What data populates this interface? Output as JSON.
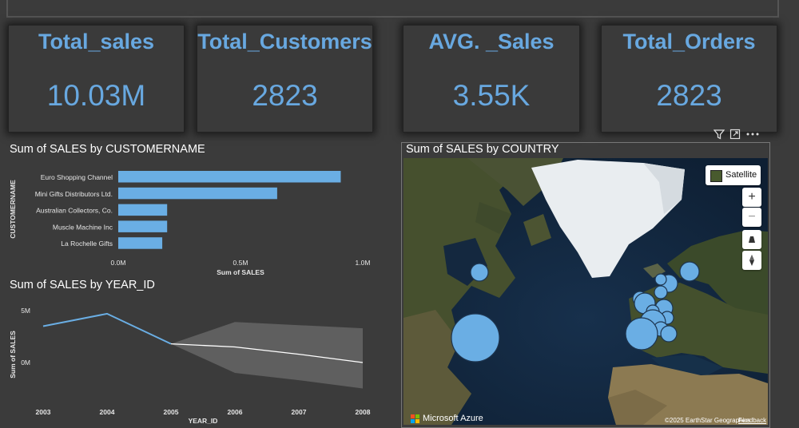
{
  "kpis": [
    {
      "title": "Total_sales",
      "value": "10.03M"
    },
    {
      "title": "Total_Customers",
      "value": "2823"
    },
    {
      "title": "AVG. _Sales",
      "value": "3.55K"
    },
    {
      "title": "Total_Orders",
      "value": "2823"
    }
  ],
  "customer_chart": {
    "title": "Sum of SALES by CUSTOMERNAME",
    "ylabel": "CUSTOMERNAME",
    "xlabel": "Sum of SALES",
    "ticks": [
      "0.0M",
      "0.5M",
      "1.0M"
    ]
  },
  "year_chart": {
    "title": "Sum of SALES by YEAR_ID",
    "ylabel": "Sum of SALES",
    "xlabel": "YEAR_ID",
    "yticks": [
      "5M",
      "0M"
    ]
  },
  "map": {
    "title": "Sum of SALES by COUNTRY",
    "satellite_label": "Satellite",
    "zoom_in": "+",
    "zoom_out": "−",
    "logo_text": "Microsoft Azure",
    "copyright": "©2025 EarthStar Geographics",
    "feedback": "Feedback"
  },
  "colors": {
    "accent": "#68a8e0",
    "bar": "#6aaee4",
    "background": "#3b3b3b"
  },
  "chart_data": [
    {
      "type": "bar",
      "orientation": "horizontal",
      "title": "Sum of SALES by CUSTOMERNAME",
      "categories": [
        "Euro Shopping Channel",
        "Mini Gifts Distributors Ltd.",
        "Australian Collectors, Co.",
        "Muscle Machine Inc",
        "La Rochelle Gifts"
      ],
      "values": [
        0.91,
        0.65,
        0.2,
        0.2,
        0.18
      ],
      "xlabel": "Sum of SALES",
      "ylabel": "CUSTOMERNAME",
      "xlim": [
        0,
        1.0
      ],
      "unit": "M"
    },
    {
      "type": "line",
      "title": "Sum of SALES by YEAR_ID",
      "x": [
        2003,
        2004,
        2005
      ],
      "values": [
        3.5,
        4.7,
        1.8
      ],
      "forecast": {
        "x": [
          2005,
          2006,
          2007,
          2008
        ],
        "values": [
          1.8,
          1.5,
          0.8,
          0.0
        ],
        "upper": [
          1.8,
          3.9,
          3.6,
          3.3
        ],
        "lower": [
          1.8,
          -1.0,
          -1.7,
          -2.5
        ]
      },
      "xticks": [
        "2003",
        "2004",
        "2005",
        "2006",
        "2007",
        "2008"
      ],
      "xlabel": "YEAR_ID",
      "ylabel": "Sum of SALES",
      "ylim": [
        -3,
        6
      ],
      "unit": "M"
    }
  ]
}
